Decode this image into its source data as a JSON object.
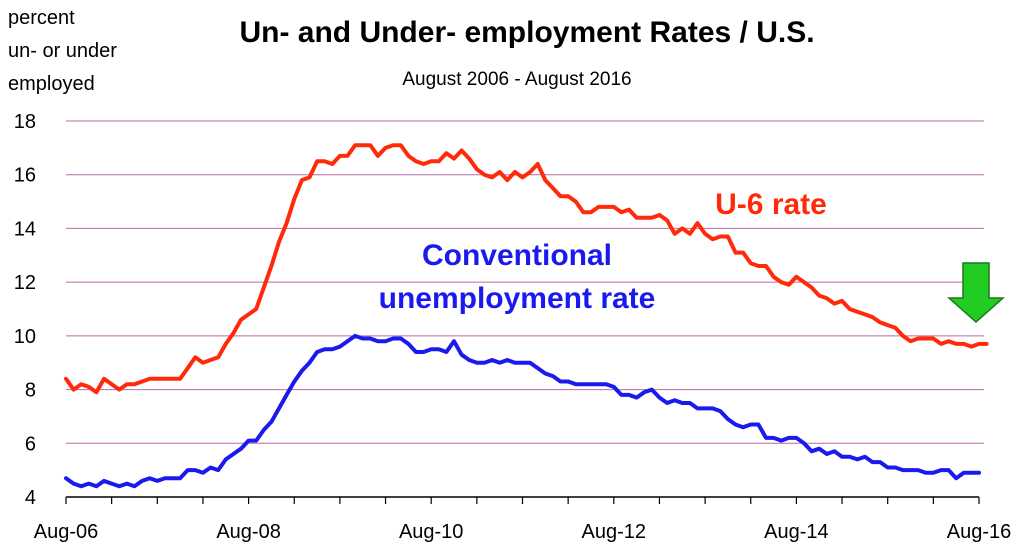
{
  "colors": {
    "u6": "#ff2a0a",
    "conventional": "#1a1aee",
    "grid": "#b86aa8",
    "arrow_fill": "#22cc22",
    "arrow_stroke": "#1a7a1a"
  },
  "chart_data": {
    "type": "line",
    "title": "Un- and Under- employment Rates / U.S.",
    "subtitle": "August 2006 - August 2016",
    "ylabel_lines": [
      "percent",
      "un- or under",
      "employed"
    ],
    "ylim": [
      4,
      18
    ],
    "yticks": [
      4,
      6,
      8,
      10,
      12,
      14,
      16,
      18
    ],
    "grid": true,
    "x_range": [
      0,
      120
    ],
    "xticks": [
      {
        "label": "Aug-06",
        "pos": 0
      },
      {
        "label": "Aug-08",
        "pos": 24
      },
      {
        "label": "Aug-10",
        "pos": 48
      },
      {
        "label": "Aug-12",
        "pos": 72
      },
      {
        "label": "Aug-14",
        "pos": 96
      },
      {
        "label": "Aug-16",
        "pos": 120
      }
    ],
    "series": [
      {
        "name": "U-6 rate",
        "key": "u6",
        "values": [
          8.4,
          8.0,
          8.2,
          8.1,
          7.9,
          8.4,
          8.2,
          8.0,
          8.2,
          8.2,
          8.3,
          8.4,
          8.4,
          8.4,
          8.4,
          8.4,
          8.8,
          9.2,
          9.0,
          9.1,
          9.2,
          9.7,
          10.1,
          10.6,
          10.8,
          11.0,
          11.8,
          12.6,
          13.5,
          14.2,
          15.1,
          15.8,
          15.9,
          16.5,
          16.5,
          16.4,
          16.7,
          16.7,
          17.1,
          17.1,
          17.1,
          16.7,
          17.0,
          17.1,
          17.1,
          16.7,
          16.5,
          16.4,
          16.5,
          16.5,
          16.8,
          16.6,
          16.9,
          16.6,
          16.2,
          16.0,
          15.9,
          16.1,
          15.8,
          16.1,
          15.9,
          16.1,
          16.4,
          15.8,
          15.5,
          15.2,
          15.2,
          15.0,
          14.6,
          14.6,
          14.8,
          14.8,
          14.8,
          14.6,
          14.7,
          14.4,
          14.4,
          14.4,
          14.5,
          14.3,
          13.8,
          14.0,
          13.8,
          14.2,
          13.8,
          13.6,
          13.7,
          13.7,
          13.1,
          13.1,
          12.7,
          12.6,
          12.6,
          12.2,
          12.0,
          11.9,
          12.2,
          12.0,
          11.8,
          11.5,
          11.4,
          11.2,
          11.3,
          11.0,
          10.9,
          10.8,
          10.7,
          10.5,
          10.4,
          10.3,
          10.0,
          9.8,
          9.9,
          9.9,
          9.9,
          9.7,
          9.8,
          9.7,
          9.7,
          9.6,
          9.7,
          9.7
        ]
      },
      {
        "name": "Conventional unemployment rate",
        "key": "conventional",
        "values": [
          4.7,
          4.5,
          4.4,
          4.5,
          4.4,
          4.6,
          4.5,
          4.4,
          4.5,
          4.4,
          4.6,
          4.7,
          4.6,
          4.7,
          4.7,
          4.7,
          5.0,
          5.0,
          4.9,
          5.1,
          5.0,
          5.4,
          5.6,
          5.8,
          6.1,
          6.1,
          6.5,
          6.8,
          7.3,
          7.8,
          8.3,
          8.7,
          9.0,
          9.4,
          9.5,
          9.5,
          9.6,
          9.8,
          10.0,
          9.9,
          9.9,
          9.8,
          9.8,
          9.9,
          9.9,
          9.7,
          9.4,
          9.4,
          9.5,
          9.5,
          9.4,
          9.8,
          9.3,
          9.1,
          9.0,
          9.0,
          9.1,
          9.0,
          9.1,
          9.0,
          9.0,
          9.0,
          8.8,
          8.6,
          8.5,
          8.3,
          8.3,
          8.2,
          8.2,
          8.2,
          8.2,
          8.2,
          8.1,
          7.8,
          7.8,
          7.7,
          7.9,
          8.0,
          7.7,
          7.5,
          7.6,
          7.5,
          7.5,
          7.3,
          7.3,
          7.3,
          7.2,
          6.9,
          6.7,
          6.6,
          6.7,
          6.7,
          6.2,
          6.2,
          6.1,
          6.2,
          6.2,
          6.0,
          5.7,
          5.8,
          5.6,
          5.7,
          5.5,
          5.5,
          5.4,
          5.5,
          5.3,
          5.3,
          5.1,
          5.1,
          5.0,
          5.0,
          5.0,
          4.9,
          4.9,
          5.0,
          5.0,
          4.7,
          4.9,
          4.9,
          4.9
        ]
      }
    ],
    "annotations": [
      {
        "text": "U-6 rate",
        "key": "u6"
      },
      {
        "text_lines": [
          "Conventional",
          "unemployment rate"
        ],
        "key": "conventional"
      }
    ]
  }
}
